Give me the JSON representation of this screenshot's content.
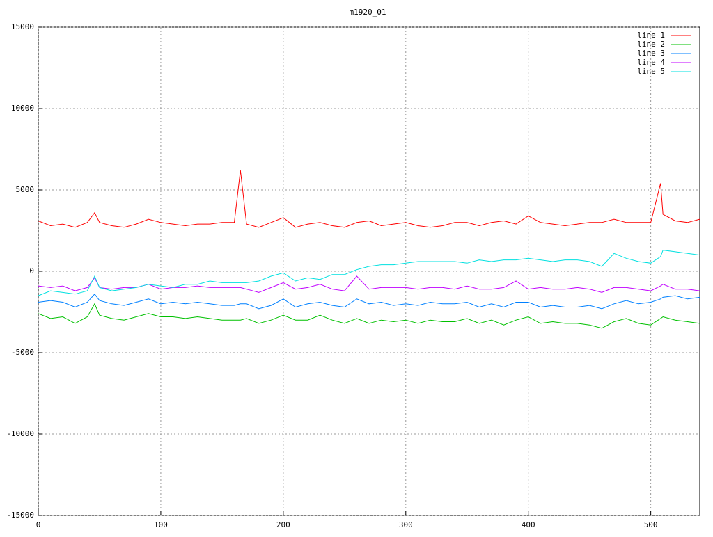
{
  "chart_data": {
    "type": "line",
    "title": "m1920_01",
    "x": [
      0,
      10,
      20,
      30,
      40,
      46,
      50,
      60,
      70,
      80,
      90,
      100,
      110,
      120,
      130,
      140,
      150,
      160,
      165,
      170,
      180,
      190,
      200,
      210,
      220,
      230,
      240,
      250,
      260,
      270,
      280,
      290,
      300,
      310,
      320,
      330,
      340,
      350,
      360,
      370,
      380,
      390,
      400,
      410,
      420,
      430,
      440,
      450,
      460,
      470,
      480,
      490,
      500,
      508,
      510,
      520,
      530,
      540
    ],
    "series": [
      {
        "name": "line 1",
        "color": "#ff0000",
        "values": [
          3100,
          2800,
          2900,
          2700,
          3000,
          3600,
          3000,
          2800,
          2700,
          2900,
          3200,
          3000,
          2900,
          2800,
          2900,
          2900,
          3000,
          3000,
          6200,
          2900,
          2700,
          3000,
          3300,
          2700,
          2900,
          3000,
          2800,
          2700,
          3000,
          3100,
          2800,
          2900,
          3000,
          2800,
          2700,
          2800,
          3000,
          3000,
          2800,
          3000,
          3100,
          2900,
          3400,
          3000,
          2900,
          2800,
          2900,
          3000,
          3000,
          3200,
          3000,
          3000,
          3000,
          5400,
          3500,
          3100,
          3000,
          3200
        ]
      },
      {
        "name": "line 2",
        "color": "#00c000",
        "values": [
          -2600,
          -2900,
          -2800,
          -3200,
          -2800,
          -2000,
          -2700,
          -2900,
          -3000,
          -2800,
          -2600,
          -2800,
          -2800,
          -2900,
          -2800,
          -2900,
          -3000,
          -3000,
          -3000,
          -2900,
          -3200,
          -3000,
          -2700,
          -3000,
          -3000,
          -2700,
          -3000,
          -3200,
          -2900,
          -3200,
          -3000,
          -3100,
          -3000,
          -3200,
          -3000,
          -3100,
          -3100,
          -2900,
          -3200,
          -3000,
          -3300,
          -3000,
          -2800,
          -3200,
          -3100,
          -3200,
          -3200,
          -3300,
          -3500,
          -3100,
          -2900,
          -3200,
          -3300,
          -2900,
          -2800,
          -3000,
          -3100,
          -3200
        ]
      },
      {
        "name": "line 3",
        "color": "#0080ff",
        "values": [
          -1900,
          -1800,
          -1900,
          -2200,
          -1900,
          -1400,
          -1800,
          -2000,
          -2100,
          -1900,
          -1700,
          -2000,
          -1900,
          -2000,
          -1900,
          -2000,
          -2100,
          -2100,
          -2000,
          -2000,
          -2300,
          -2100,
          -1700,
          -2200,
          -2000,
          -1900,
          -2100,
          -2200,
          -1700,
          -2000,
          -1900,
          -2100,
          -2000,
          -2100,
          -1900,
          -2000,
          -2000,
          -1900,
          -2200,
          -2000,
          -2200,
          -1900,
          -1900,
          -2200,
          -2100,
          -2200,
          -2200,
          -2100,
          -2300,
          -2000,
          -1800,
          -2000,
          -1900,
          -1700,
          -1600,
          -1500,
          -1700,
          -1600
        ]
      },
      {
        "name": "line 4",
        "color": "#c000ff",
        "values": [
          -900,
          -1000,
          -900,
          -1200,
          -1000,
          -400,
          -1000,
          -1100,
          -1000,
          -1000,
          -800,
          -1100,
          -1000,
          -1000,
          -900,
          -1000,
          -1000,
          -1000,
          -1000,
          -1100,
          -1300,
          -1000,
          -700,
          -1100,
          -1000,
          -800,
          -1100,
          -1200,
          -300,
          -1100,
          -1000,
          -1000,
          -1000,
          -1100,
          -1000,
          -1000,
          -1100,
          -900,
          -1100,
          -1100,
          -1000,
          -600,
          -1100,
          -1000,
          -1100,
          -1100,
          -1000,
          -1100,
          -1300,
          -1000,
          -1000,
          -1100,
          -1200,
          -900,
          -800,
          -1100,
          -1100,
          -1200
        ]
      },
      {
        "name": "line 5",
        "color": "#00e0e0",
        "values": [
          -1500,
          -1200,
          -1300,
          -1400,
          -1200,
          -300,
          -1000,
          -1200,
          -1100,
          -1000,
          -800,
          -900,
          -1000,
          -800,
          -800,
          -600,
          -700,
          -700,
          -700,
          -700,
          -600,
          -300,
          -100,
          -600,
          -400,
          -500,
          -200,
          -200,
          100,
          300,
          400,
          400,
          500,
          600,
          600,
          600,
          600,
          500,
          700,
          600,
          700,
          700,
          800,
          700,
          600,
          700,
          700,
          600,
          300,
          1100,
          800,
          600,
          500,
          900,
          1300,
          1200,
          1100,
          1000
        ]
      }
    ],
    "xlim": [
      0,
      540
    ],
    "xticks": [
      0,
      100,
      200,
      300,
      400,
      500
    ],
    "ylim": [
      -15000,
      15000
    ],
    "yticks": [
      -15000,
      -10000,
      -5000,
      0,
      5000,
      10000,
      15000
    ],
    "grid": true,
    "legend": "top-right"
  }
}
